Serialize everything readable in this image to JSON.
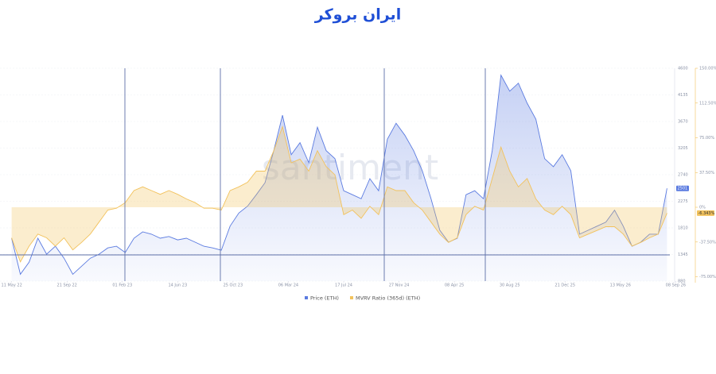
{
  "logo": "ایران بروکر",
  "chart_data": {
    "type": "line",
    "watermark": "santiment",
    "x": [
      0,
      3,
      6,
      9,
      12,
      15,
      18,
      21,
      24,
      27,
      30,
      33,
      36,
      39,
      42,
      45,
      48,
      51,
      54,
      57,
      60,
      63,
      66,
      69,
      72,
      75,
      78,
      81,
      84,
      87,
      90,
      93,
      96,
      99,
      102,
      105,
      108,
      111,
      114,
      117,
      120,
      123,
      126,
      129,
      132,
      135,
      138,
      141,
      144,
      147,
      150,
      153,
      156,
      159,
      162,
      165,
      168,
      171,
      174,
      177,
      180,
      183,
      186,
      189,
      192,
      195,
      198,
      201,
      204,
      207,
      210,
      213,
      216,
      219,
      222,
      225
    ],
    "xlim": [
      -4,
      229
    ],
    "xticks": [
      {
        "value": 0,
        "label": "11 May 22"
      },
      {
        "value": 19,
        "label": "21 Sep 22"
      },
      {
        "value": 38,
        "label": "01 Feb 23"
      },
      {
        "value": 57,
        "label": "14 Jun 23"
      },
      {
        "value": 76,
        "label": "25 Oct 23"
      },
      {
        "value": 95,
        "label": "06 Mar 24"
      },
      {
        "value": 114,
        "label": "17 Jul 24"
      },
      {
        "value": 133,
        "label": "27 Nov 24"
      },
      {
        "value": 152,
        "label": "08 Apr 25"
      },
      {
        "value": 171,
        "label": "30 Aug 25"
      },
      {
        "value": 190,
        "label": "21 Dec 25"
      },
      {
        "value": 209,
        "label": "13 May 26"
      },
      {
        "value": 228,
        "label": "08 Sep 26"
      }
    ],
    "ylim": [
      880,
      4600
    ],
    "yticks": [
      880,
      1345,
      1810,
      2275,
      2740,
      3205,
      3670,
      4135,
      4600
    ],
    "y2lim": [
      -79.7,
      150
    ],
    "y2ticks": [
      {
        "value": 150,
        "label": "150.00%"
      },
      {
        "value": 112.5,
        "label": "112.50%"
      },
      {
        "value": 75,
        "label": "75.00%"
      },
      {
        "value": 37.5,
        "label": "37.50%"
      },
      {
        "value": 0,
        "label": "0%"
      },
      {
        "value": -37.5,
        "label": "-37.50%"
      },
      {
        "value": -75,
        "label": "-75.00%"
      }
    ],
    "grid": true,
    "series": [
      {
        "name": "Price (ETH)",
        "color": "#5b7be0",
        "values": [
          1630,
          1000,
          1210,
          1630,
          1350,
          1490,
          1280,
          1000,
          1140,
          1280,
          1350,
          1460,
          1490,
          1380,
          1630,
          1740,
          1700,
          1630,
          1660,
          1600,
          1630,
          1560,
          1490,
          1460,
          1420,
          1840,
          2070,
          2190,
          2390,
          2600,
          3160,
          3780,
          3090,
          3300,
          2950,
          3570,
          3160,
          3020,
          2460,
          2390,
          2320,
          2670,
          2460,
          3360,
          3640,
          3430,
          3160,
          2810,
          2320,
          1770,
          1560,
          1630,
          2390,
          2460,
          2320,
          3160,
          4480,
          4200,
          4340,
          3990,
          3710,
          3020,
          2880,
          3090,
          2810,
          1700,
          1770,
          1840,
          1910,
          2120,
          1840,
          1490,
          1560,
          1700,
          1700,
          2501
        ],
        "value_labels": [
          null,
          null,
          null,
          null,
          null,
          null,
          null,
          null,
          null,
          null,
          null,
          null,
          null,
          null,
          null,
          null,
          null,
          null,
          null,
          null,
          null,
          null,
          null,
          null,
          null,
          null,
          null,
          null,
          null,
          null,
          null,
          null,
          null,
          null,
          null,
          null,
          null,
          null,
          null,
          null,
          null,
          null,
          null,
          null,
          null,
          null,
          null,
          null,
          null,
          null,
          null,
          null,
          null,
          null,
          null,
          null,
          null,
          null,
          null,
          null,
          null,
          null,
          null,
          null,
          null,
          null,
          null,
          null,
          null,
          null,
          null,
          null,
          null,
          null,
          null,
          "2501"
        ]
      },
      {
        "name": "MVRV Ratio (365d) (ETH)",
        "color": "#f2c25c",
        "axis": "y2",
        "values": [
          -33,
          -59,
          -42,
          -29,
          -33,
          -42,
          -33,
          -46,
          -38,
          -29,
          -16,
          -3,
          -1,
          5,
          18,
          22,
          18,
          14,
          18,
          14,
          9,
          5,
          -1,
          -1,
          -3,
          18,
          22,
          27,
          39,
          39,
          61,
          87,
          48,
          52,
          39,
          61,
          44,
          35,
          -8,
          -3,
          -12,
          1,
          -8,
          22,
          18,
          18,
          5,
          -3,
          -16,
          -29,
          -38,
          -33,
          -8,
          1,
          -3,
          31,
          65,
          39,
          22,
          31,
          9,
          -3,
          -8,
          1,
          -8,
          -33,
          -29,
          -25,
          -21,
          -21,
          -29,
          -42,
          -38,
          -33,
          -29,
          -6.343
        ],
        "value_labels": [
          null,
          null,
          null,
          null,
          null,
          null,
          null,
          null,
          null,
          null,
          null,
          null,
          null,
          null,
          null,
          null,
          null,
          null,
          null,
          null,
          null,
          null,
          null,
          null,
          null,
          null,
          null,
          null,
          null,
          null,
          null,
          null,
          null,
          null,
          null,
          null,
          null,
          null,
          null,
          null,
          null,
          null,
          null,
          null,
          null,
          null,
          null,
          null,
          null,
          null,
          null,
          null,
          null,
          null,
          null,
          null,
          null,
          null,
          null,
          null,
          null,
          null,
          null,
          null,
          null,
          null,
          null,
          null,
          null,
          null,
          null,
          null,
          null,
          null,
          null,
          "-6.343%"
        ]
      }
    ]
  }
}
